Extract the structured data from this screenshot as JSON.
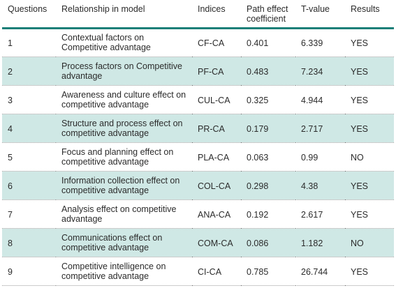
{
  "table": {
    "headers": {
      "questions": "Questions",
      "relationship": "Relationship in model",
      "indices": "Indices",
      "path_effect": "Path effect coefficient",
      "tvalue": "T-value",
      "results": "Results"
    },
    "rows": [
      {
        "question": "1",
        "relationship": "Contextual factors on Competitive advantage",
        "index": "CF-CA",
        "coefficient": "0.401",
        "tvalue": "6.339",
        "result": "YES"
      },
      {
        "question": "2",
        "relationship": "Process factors on Competitive advantage",
        "index": "PF-CA",
        "coefficient": "0.483",
        "tvalue": "7.234",
        "result": "YES"
      },
      {
        "question": "3",
        "relationship": "Awareness and culture effect on competitive advantage",
        "index": "CUL-CA",
        "coefficient": "0.325",
        "tvalue": "4.944",
        "result": "YES"
      },
      {
        "question": "4",
        "relationship": "Structure and process effect on competitive advantage",
        "index": "PR-CA",
        "coefficient": "0.179",
        "tvalue": "2.717",
        "result": "YES"
      },
      {
        "question": "5",
        "relationship": "Focus and planning effect on competitive advantage",
        "index": "PLA-CA",
        "coefficient": "0.063",
        "tvalue": "0.99",
        "result": "NO"
      },
      {
        "question": "6",
        "relationship": "Information collection effect on competitive advantage",
        "index": "COL-CA",
        "coefficient": "0.298",
        "tvalue": "4.38",
        "result": "YES"
      },
      {
        "question": "7",
        "relationship": "Analysis effect on competitive advantage",
        "index": "ANA-CA",
        "coefficient": "0.192",
        "tvalue": "2.617",
        "result": "YES"
      },
      {
        "question": "8",
        "relationship": "Communications effect on competitive advantage",
        "index": "COM-CA",
        "coefficient": "0.086",
        "tvalue": "1.182",
        "result": "NO"
      },
      {
        "question": "9",
        "relationship": "Competitive intelligence on competitive advantage",
        "index": "CI-CA",
        "coefficient": "0.785",
        "tvalue": "26.744",
        "result": "YES"
      }
    ]
  },
  "colors": {
    "header_rule": "#1b7f78",
    "shaded_row": "#cfe8e5",
    "text": "#2b2b2b"
  }
}
